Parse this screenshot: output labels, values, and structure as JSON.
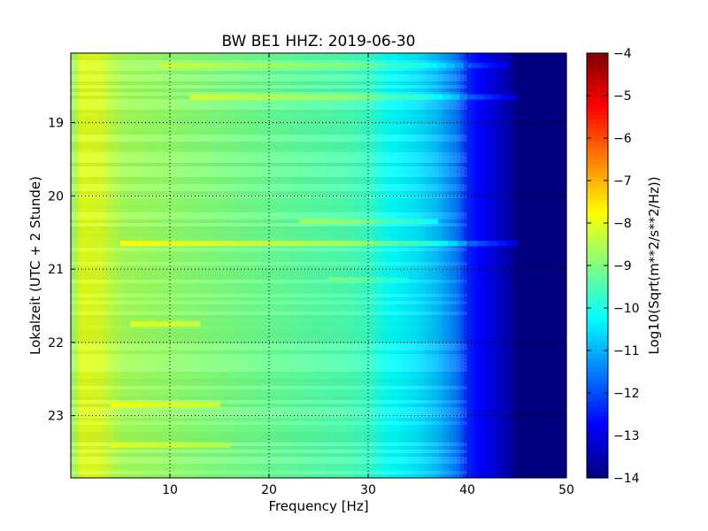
{
  "chart_data": {
    "type": "heatmap",
    "title": "BW BE1 HHZ: 2019-06-30",
    "xlabel": "Frequency [Hz]",
    "ylabel": "Lokalzeit (UTC + 2 Stunde)",
    "colorbar_label": "Log10(Sqrt(m**2/s**2/Hz))",
    "xlim": [
      0,
      50
    ],
    "ylim": [
      18.05,
      23.85
    ],
    "y_inverted": true,
    "x_ticks": [
      10,
      20,
      30,
      40,
      50
    ],
    "x_tick_labels": [
      "10",
      "20",
      "30",
      "40",
      "50"
    ],
    "y_ticks": [
      19,
      20,
      21,
      22,
      23
    ],
    "y_tick_labels": [
      "19",
      "20",
      "21",
      "22",
      "23"
    ],
    "clim": [
      -14,
      -4
    ],
    "colorbar_ticks": [
      -4,
      -5,
      -6,
      -7,
      -8,
      -9,
      -10,
      -11,
      -12,
      -13,
      -14
    ],
    "colorbar_tick_labels": [
      "−4",
      "−5",
      "−6",
      "−7",
      "−8",
      "−9",
      "−10",
      "−11",
      "−12",
      "−13",
      "−14"
    ],
    "colormap": "jet",
    "grid": true,
    "frequency_profile": [
      {
        "x": 0.5,
        "z": -8.6
      },
      {
        "x": 1,
        "z": -8.0
      },
      {
        "x": 3,
        "z": -8.1
      },
      {
        "x": 5,
        "z": -8.6
      },
      {
        "x": 10,
        "z": -8.8
      },
      {
        "x": 15,
        "z": -9.0
      },
      {
        "x": 20,
        "z": -9.2
      },
      {
        "x": 25,
        "z": -9.4
      },
      {
        "x": 28,
        "z": -9.5
      },
      {
        "x": 30,
        "z": -9.7
      },
      {
        "x": 32,
        "z": -10.2
      },
      {
        "x": 35,
        "z": -10.5
      },
      {
        "x": 37,
        "z": -10.9
      },
      {
        "x": 39,
        "z": -11.6
      },
      {
        "x": 40,
        "z": -12.4
      },
      {
        "x": 42,
        "z": -13.0
      },
      {
        "x": 44,
        "z": -13.5
      },
      {
        "x": 45,
        "z": -14.0
      },
      {
        "x": 50,
        "z": -14.0
      }
    ],
    "bands": [
      {
        "time": 18.22,
        "x_from": 9,
        "x_to": 44,
        "delta": 0.5
      },
      {
        "time": 18.65,
        "x_from": 12,
        "x_to": 45,
        "delta": 0.7
      },
      {
        "time": 20.35,
        "x_from": 23,
        "x_to": 37,
        "delta": 0.6
      },
      {
        "time": 20.65,
        "x_from": 5,
        "x_to": 45,
        "delta": 0.8
      },
      {
        "time": 21.15,
        "x_from": 26,
        "x_to": 34,
        "delta": 0.3
      },
      {
        "time": 21.75,
        "x_from": 6,
        "x_to": 13,
        "delta": 0.6
      },
      {
        "time": 22.85,
        "x_from": 4,
        "x_to": 15,
        "delta": 0.7
      },
      {
        "time": 23.4,
        "x_from": 4,
        "x_to": 16,
        "delta": 0.5
      }
    ]
  }
}
